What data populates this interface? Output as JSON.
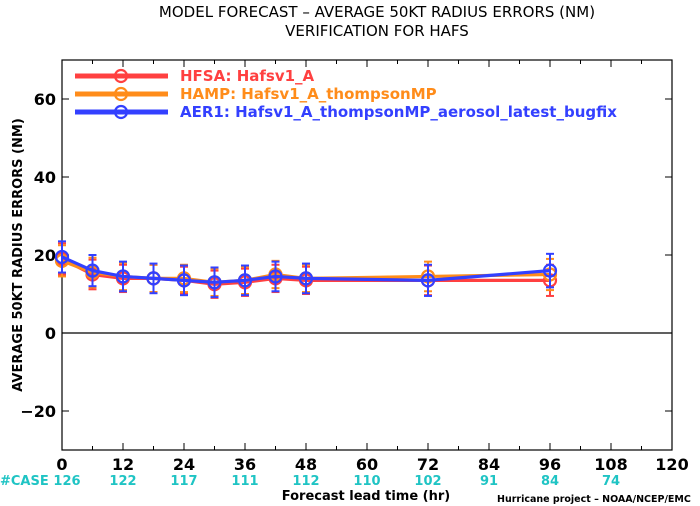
{
  "chart_data": {
    "type": "line",
    "title_line1": "MODEL FORECAST – AVERAGE 50KT RADIUS ERRORS (NM)",
    "title_line2": "VERIFICATION FOR HAFS",
    "xlabel": "Forecast lead time (hr)",
    "ylabel": "AVERAGE 50KT RADIUS ERRORS (NM)",
    "xlim": [
      0,
      120
    ],
    "ylim": [
      -30,
      70
    ],
    "xticks": [
      0,
      12,
      24,
      36,
      48,
      60,
      72,
      84,
      96,
      108,
      120
    ],
    "yticks": [
      -20,
      0,
      20,
      40,
      60
    ],
    "zero_line": true,
    "grid": false,
    "legend_position": "top-left",
    "case_label": "#CASE",
    "case_x": [
      0,
      12,
      24,
      36,
      48,
      60,
      72,
      84,
      96,
      108
    ],
    "case_counts": [
      126,
      122,
      117,
      111,
      112,
      110,
      102,
      91,
      84,
      74
    ],
    "x": [
      0,
      6,
      12,
      18,
      24,
      30,
      36,
      42,
      48,
      72,
      96
    ],
    "series": [
      {
        "name": "HFSA: Hafsv1_A",
        "color": "#ff4040",
        "values": [
          19.0,
          15.0,
          14.0,
          14.0,
          13.5,
          12.5,
          13.0,
          14.0,
          13.5,
          13.5,
          13.5
        ],
        "err": [
          4.0,
          3.8,
          3.5,
          3.5,
          3.5,
          3.5,
          3.5,
          3.5,
          3.5,
          3.8,
          4.0
        ]
      },
      {
        "name": "HAMP: Hafsv1_A_thompsonMP",
        "color": "#ff8c1a",
        "values": [
          18.5,
          15.5,
          14.5,
          14.0,
          14.0,
          13.0,
          13.5,
          15.0,
          14.0,
          14.5,
          15.0
        ],
        "err": [
          4.0,
          3.8,
          3.5,
          3.5,
          3.5,
          3.5,
          3.5,
          3.5,
          3.5,
          3.8,
          4.0
        ]
      },
      {
        "name": "AER1: Hafsv1_A_thompsonMP_aerosol_latest_bugfix",
        "color": "#3340ff",
        "values": [
          19.5,
          16.0,
          14.5,
          14.0,
          13.5,
          13.0,
          13.5,
          14.5,
          14.0,
          13.5,
          16.0
        ],
        "err": [
          4.0,
          4.0,
          3.8,
          3.8,
          3.8,
          3.8,
          3.8,
          3.8,
          3.8,
          4.0,
          4.3
        ]
      }
    ],
    "credit": "Hurricane project – NOAA/NCEP/EMC"
  }
}
